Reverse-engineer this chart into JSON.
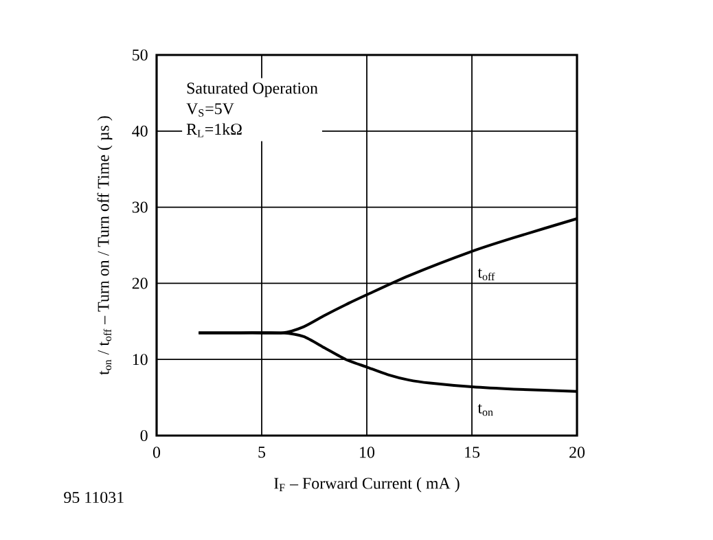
{
  "chart_data": {
    "type": "line",
    "xlabel": "I$_{F}$ – Forward Current ( mA )",
    "ylabel": "t$_{on}$ / t$_{off}$ – Turn on / Turn off Time ( µs )",
    "annotations": [
      "Saturated Operation",
      "V$_{S}$=5V",
      "R$_{L}$=1kΩ",
      "95 11031"
    ],
    "series": [
      {
        "name": "t$_{off}$",
        "color": "#000000",
        "x": [
          2,
          4,
          6,
          7,
          8,
          9,
          10,
          12,
          15,
          17,
          20
        ],
        "values": [
          13.5,
          13.5,
          13.5,
          14.3,
          15.8,
          17.2,
          18.5,
          21,
          24.2,
          26,
          28.5
        ]
      },
      {
        "name": "t$_{on}$",
        "color": "#000000",
        "x": [
          2,
          4,
          6,
          7,
          8,
          9,
          10,
          11,
          12,
          13,
          15,
          17,
          20
        ],
        "values": [
          13.5,
          13.5,
          13.5,
          13,
          11.5,
          10,
          9,
          8,
          7.3,
          6.9,
          6.4,
          6.1,
          5.8
        ]
      }
    ],
    "xlim": [
      0,
      20
    ],
    "ylim": [
      0,
      50
    ],
    "xticks": [
      0,
      5,
      10,
      15,
      20
    ],
    "yticks": [
      0,
      10,
      20,
      30,
      40,
      50
    ],
    "grid": true,
    "legend": false,
    "marker": "none",
    "line_style": "solid"
  }
}
